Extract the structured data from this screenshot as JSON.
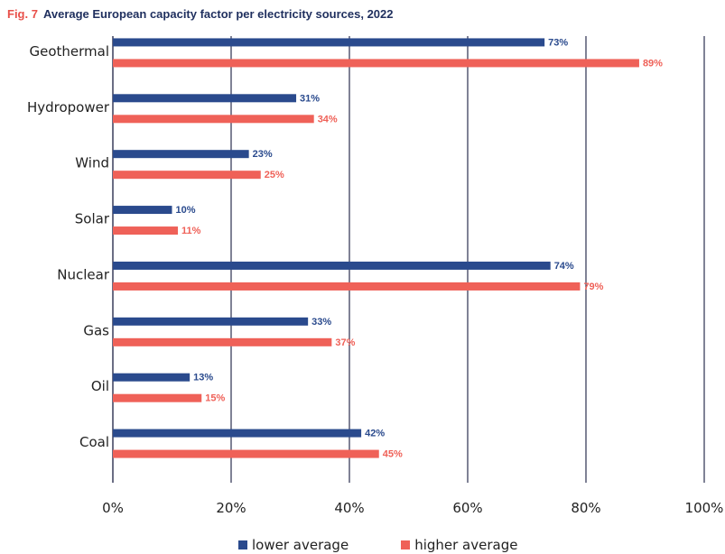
{
  "figure": {
    "number": "Fig. 7",
    "title": "Average European capacity factor per electricity sources, 2022"
  },
  "chart_data": {
    "type": "bar",
    "orientation": "horizontal",
    "title": "Average European capacity factor per electricity sources, 2022",
    "categories": [
      "Geothermal",
      "Hydropower",
      "Wind",
      "Solar",
      "Nuclear",
      "Gas",
      "Oil",
      "Coal"
    ],
    "series": [
      {
        "name": "lower average",
        "color": "#2a4a8d",
        "values": [
          73,
          31,
          23,
          10,
          74,
          33,
          13,
          42
        ],
        "labels": [
          "73%",
          "31%",
          "23%",
          "10%",
          "74%",
          "33%",
          "13%",
          "42%"
        ]
      },
      {
        "name": "higher average",
        "color": "#ef6158",
        "values": [
          89,
          34,
          25,
          11,
          79,
          37,
          15,
          45
        ],
        "labels": [
          "89%",
          "34%",
          "25%",
          "11%",
          "79%",
          "37%",
          "15%",
          "45%"
        ]
      }
    ],
    "xlim": [
      0,
      100
    ],
    "ticks": [
      0,
      20,
      40,
      60,
      80,
      100
    ],
    "tick_labels": [
      "0%",
      "20%",
      "40%",
      "60%",
      "80%",
      "100%"
    ],
    "grid": true,
    "legend": "bottom"
  }
}
